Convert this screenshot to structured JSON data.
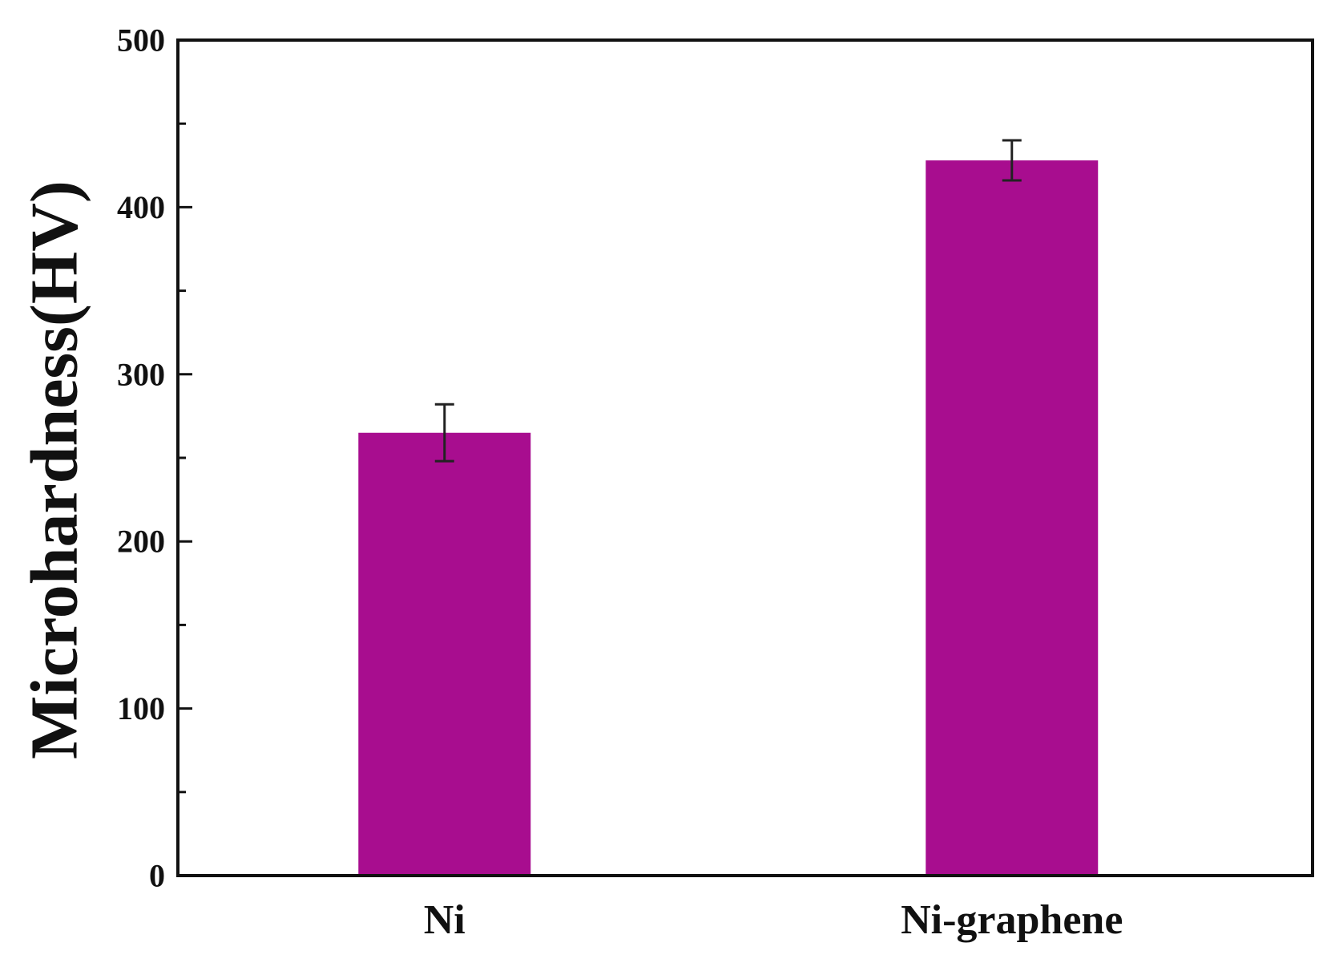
{
  "chart_data": {
    "type": "bar",
    "title": "",
    "xlabel": "",
    "ylabel": "Microhardness(HV)",
    "categories": [
      "Ni",
      "Ni-graphene"
    ],
    "values": [
      265,
      428
    ],
    "errors": [
      17,
      12
    ],
    "ylim": [
      0,
      500
    ],
    "yticks": [
      0,
      100,
      200,
      300,
      400,
      500
    ],
    "yminor_step": 50,
    "grid": false,
    "legend": "none",
    "colors": {
      "bar": "#a80d8f",
      "axis": "#111111",
      "error_bar": "#222222"
    }
  }
}
